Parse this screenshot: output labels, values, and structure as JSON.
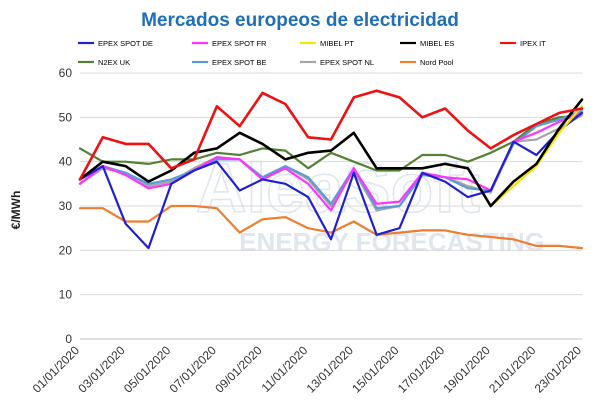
{
  "chart_data": {
    "type": "line",
    "title": "Mercados europeos de electricidad",
    "ylabel": "€/MWh",
    "xlabel": "",
    "ylim": [
      0,
      60
    ],
    "yticks": [
      0,
      10,
      20,
      30,
      40,
      50,
      60
    ],
    "grid": true,
    "legend_position": "top",
    "watermark": {
      "brand": "AleaSoft",
      "subtitle": "ENERGY FORECASTING"
    },
    "x": [
      "01/01/2020",
      "02/01/2020",
      "03/01/2020",
      "04/01/2020",
      "05/01/2020",
      "06/01/2020",
      "07/01/2020",
      "08/01/2020",
      "09/01/2020",
      "10/01/2020",
      "11/01/2020",
      "12/01/2020",
      "13/01/2020",
      "14/01/2020",
      "15/01/2020",
      "16/01/2020",
      "17/01/2020",
      "18/01/2020",
      "19/01/2020",
      "20/01/2020",
      "21/01/2020",
      "22/01/2020",
      "23/01/2020"
    ],
    "xtick_labels": [
      "01/01/2020",
      "03/01/2020",
      "05/01/2020",
      "07/01/2020",
      "09/01/2020",
      "11/01/2020",
      "13/01/2020",
      "15/01/2020",
      "17/01/2020",
      "19/01/2020",
      "21/01/2020",
      "23/01/2020"
    ],
    "series": [
      {
        "name": "EPEX SPOT DE",
        "color": "#1f1fd6",
        "values": [
          36,
          39,
          26,
          20.5,
          35,
          38,
          40,
          33.5,
          36,
          35,
          32,
          22.5,
          37.5,
          23.5,
          25,
          37.5,
          35.5,
          32,
          33.5,
          44.5,
          41.5,
          47,
          51
        ]
      },
      {
        "name": "EPEX SPOT FR",
        "color": "#ff33ff",
        "values": [
          35,
          39,
          37,
          34,
          35,
          38,
          41,
          40.5,
          36,
          38.5,
          35,
          29,
          38.5,
          30.5,
          31,
          37.5,
          36.5,
          36,
          33.5,
          44.5,
          46.5,
          49,
          51
        ]
      },
      {
        "name": "MIBEL PT",
        "color": "#f5e600",
        "values": [
          36,
          40,
          39,
          35.5,
          38,
          42,
          43,
          46.5,
          44,
          40.5,
          42,
          42.5,
          46.5,
          38.5,
          38.5,
          38.5,
          39.5,
          38.5,
          30,
          34.5,
          39,
          46.5,
          52.5
        ]
      },
      {
        "name": "MIBEL ES",
        "color": "#000000",
        "values": [
          36,
          40,
          39,
          35.5,
          38,
          42,
          43,
          46.5,
          44,
          40.5,
          42,
          42.5,
          46.5,
          38.5,
          38.5,
          38.5,
          39.5,
          38.5,
          30,
          35.5,
          39.5,
          47.5,
          54
        ]
      },
      {
        "name": "IPEX IT",
        "color": "#ee1111",
        "values": [
          36,
          45.5,
          44,
          44,
          38.5,
          40.5,
          52.5,
          48,
          55.5,
          53,
          45.5,
          45,
          54.5,
          56,
          54.5,
          50,
          52,
          47,
          43,
          46,
          48.5,
          51,
          52
        ]
      },
      {
        "name": "N2EX UK",
        "color": "#548235",
        "values": [
          43,
          40,
          40,
          39.5,
          40.5,
          40.5,
          42,
          41.5,
          43,
          42.5,
          38.5,
          42,
          40,
          38,
          38,
          41.5,
          41.5,
          40,
          42,
          44.5,
          48.5,
          50,
          50.5
        ]
      },
      {
        "name": "EPEX SPOT BE",
        "color": "#5b9bd5",
        "values": [
          35,
          39,
          37.5,
          35,
          36,
          38,
          40.5,
          40.5,
          36.5,
          39,
          36.5,
          30.5,
          38.5,
          29.5,
          30,
          37,
          36.5,
          34,
          33.5,
          44,
          48,
          49.5,
          51.5
        ]
      },
      {
        "name": "EPEX SPOT NL",
        "color": "#a6a6a6",
        "values": [
          35,
          38.5,
          37.5,
          34.5,
          35.5,
          38.5,
          41,
          40.5,
          36,
          39,
          36,
          30,
          38,
          29,
          30,
          37,
          36.5,
          34.5,
          33,
          44.5,
          45,
          47.5,
          50.5
        ]
      },
      {
        "name": "Nord Pool",
        "color": "#ed7d31",
        "values": [
          29.5,
          29.5,
          26.5,
          26.5,
          30,
          30,
          29.5,
          24,
          27,
          27.5,
          25,
          24,
          26.5,
          23.5,
          24,
          24.5,
          24.5,
          23.5,
          23,
          22.5,
          21,
          21,
          20.5
        ]
      }
    ]
  }
}
